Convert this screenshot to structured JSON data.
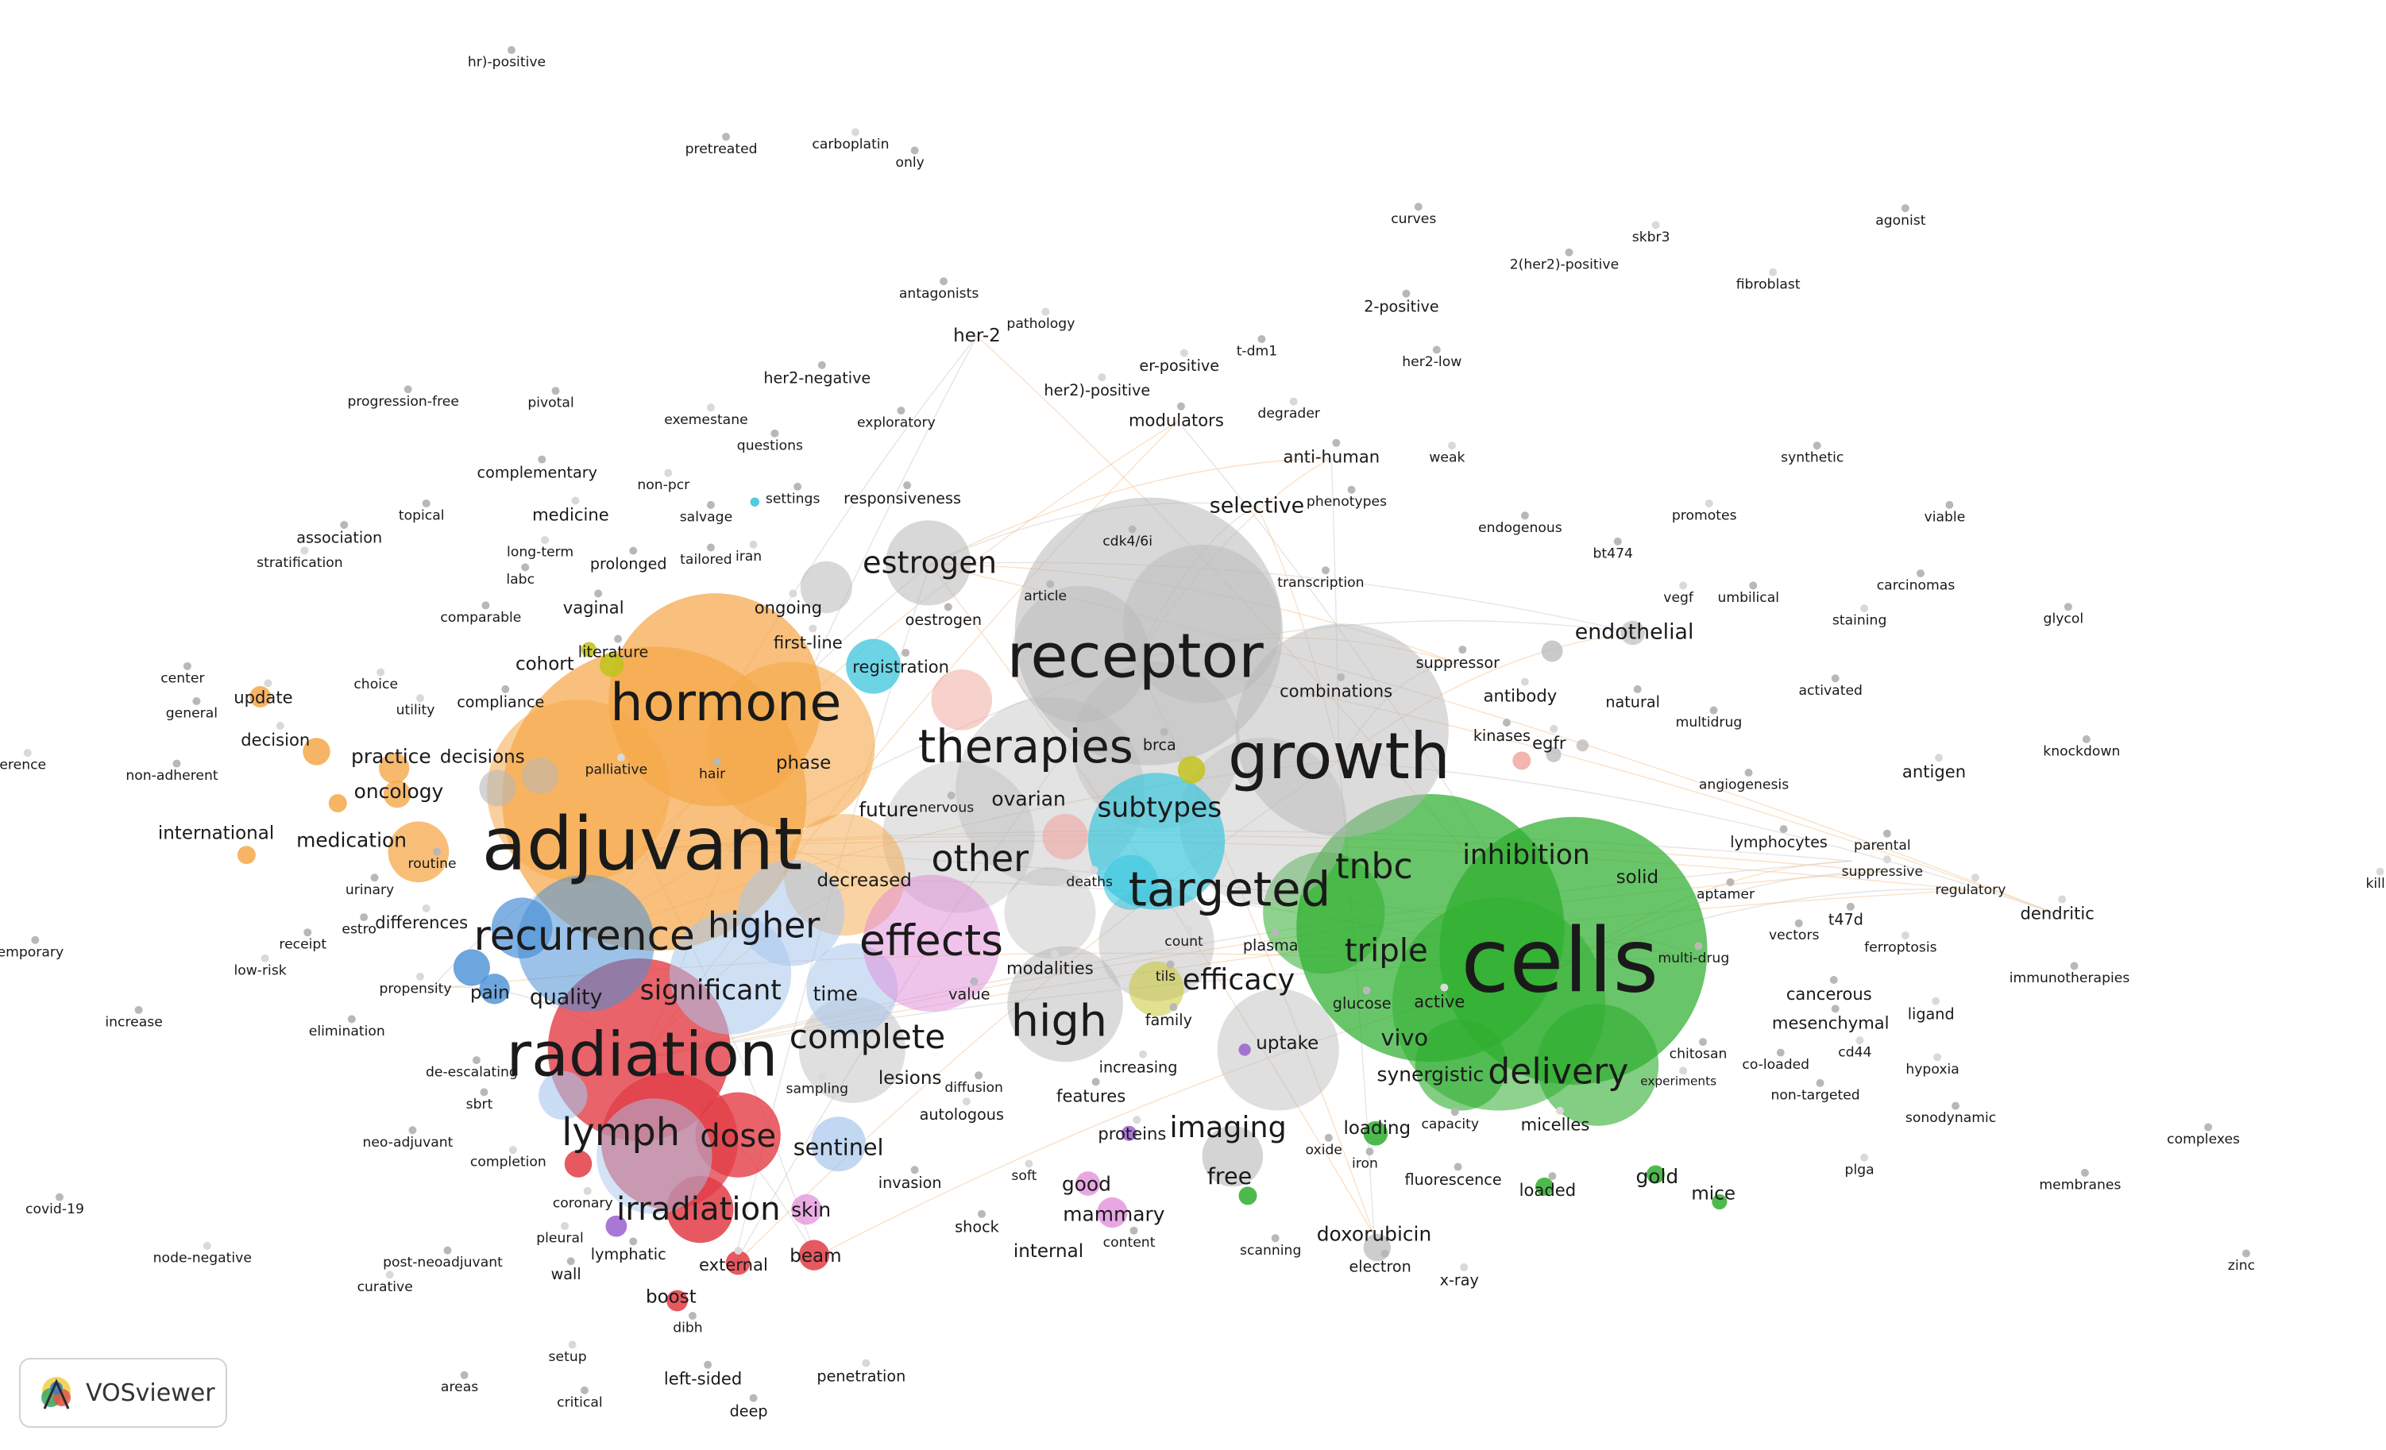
{
  "app": {
    "name": "VOSviewer"
  },
  "colors": {
    "gray": "#b8b8b8",
    "green": "#2fae2f",
    "orange": "#f5a849",
    "red": "#e23c45",
    "blue": "#4a90d6",
    "lightblue": "#a7c6ec",
    "cyan": "#3cc6dd",
    "pink": "#e08ad8",
    "purple": "#9a5fcf",
    "olive": "#c3c31f",
    "salmon": "#f0a39a",
    "brown": "#d98b5a"
  },
  "clusters": [
    {
      "name": "gray",
      "color": "gray"
    },
    {
      "name": "green",
      "color": "green"
    },
    {
      "name": "orange",
      "color": "orange"
    },
    {
      "name": "red",
      "color": "red"
    },
    {
      "name": "blue",
      "color": "blue"
    },
    {
      "name": "lightblue",
      "color": "lightblue"
    },
    {
      "name": "cyan",
      "color": "cyan"
    },
    {
      "name": "pink",
      "color": "pink"
    },
    {
      "name": "purple",
      "color": "purple"
    },
    {
      "name": "olive",
      "color": "olive"
    }
  ],
  "terms": [
    {
      "label": "cells",
      "cluster": "green",
      "weight": 10
    },
    {
      "label": "adjuvant",
      "cluster": "orange",
      "weight": 9.2
    },
    {
      "label": "growth",
      "cluster": "gray",
      "weight": 8.4
    },
    {
      "label": "receptor",
      "cluster": "gray",
      "weight": 8.0
    },
    {
      "label": "radiation",
      "cluster": "red",
      "weight": 7.8
    },
    {
      "label": "hormone",
      "cluster": "orange",
      "weight": 7.4
    },
    {
      "label": "therapies",
      "cluster": "gray",
      "weight": 6.8
    },
    {
      "label": "targeted",
      "cluster": "gray",
      "weight": 6.6
    },
    {
      "label": "recurrence",
      "cluster": "blue",
      "weight": 6.0
    },
    {
      "label": "effects",
      "cluster": "pink",
      "weight": 5.8
    },
    {
      "label": "high",
      "cluster": "gray",
      "weight": 5.8
    },
    {
      "label": "estrogen",
      "cluster": "gray",
      "weight": 5.0
    },
    {
      "label": "higher",
      "cluster": "lightblue",
      "weight": 5.0
    },
    {
      "label": "other",
      "cluster": "gray",
      "weight": 5.0
    },
    {
      "label": "lymph",
      "cluster": "red",
      "weight": 5.0
    },
    {
      "label": "tnbc",
      "cluster": "green",
      "weight": 4.6
    },
    {
      "label": "triple",
      "cluster": "green",
      "weight": 4.6
    },
    {
      "label": "complete",
      "cluster": "gray",
      "weight": 4.6
    },
    {
      "label": "delivery",
      "cluster": "green",
      "weight": 4.6
    },
    {
      "label": "irradiation",
      "cluster": "red",
      "weight": 4.6
    },
    {
      "label": "dose",
      "cluster": "red",
      "weight": 4.4
    },
    {
      "label": "subtypes",
      "cluster": "cyan",
      "weight": 4.4
    },
    {
      "label": "inhibition",
      "cluster": "green",
      "weight": 4.2
    },
    {
      "label": "efficacy",
      "cluster": "gray",
      "weight": 4.2
    },
    {
      "label": "significant",
      "cluster": "lightblue",
      "weight": 4.0
    },
    {
      "label": "imaging",
      "cluster": "gray",
      "weight": 4.0
    },
    {
      "label": "selective",
      "cluster": "gray",
      "weight": 3.6
    },
    {
      "label": "sentinel",
      "cluster": "lightblue",
      "weight": 3.6
    },
    {
      "label": "vivo",
      "cluster": "green",
      "weight": 3.6
    },
    {
      "label": "practice",
      "cluster": "orange",
      "weight": 3.4
    },
    {
      "label": "endothelial",
      "cluster": "gray",
      "weight": 3.4
    },
    {
      "label": "free",
      "cluster": "gray",
      "weight": 3.4
    },
    {
      "label": "quality",
      "cluster": "blue",
      "weight": 3.4
    },
    {
      "label": "ovarian",
      "cluster": "gray",
      "weight": 3.2
    },
    {
      "label": "future",
      "cluster": "gray",
      "weight": 3.2
    },
    {
      "label": "oncology",
      "cluster": "orange",
      "weight": 3.2
    },
    {
      "label": "medication",
      "cluster": "orange",
      "weight": 3.2
    },
    {
      "label": "mammary",
      "cluster": "pink",
      "weight": 3.0
    },
    {
      "label": "international",
      "cluster": "orange",
      "weight": 3.0
    },
    {
      "label": "decreased",
      "cluster": "orange",
      "weight": 3.0
    },
    {
      "label": "time",
      "cluster": "lightblue",
      "weight": 3.0
    },
    {
      "label": "pain",
      "cluster": "blue",
      "weight": 3.0
    },
    {
      "label": "differences",
      "cluster": "blue",
      "weight": 2.8
    },
    {
      "label": "skin",
      "cluster": "red",
      "weight": 2.8
    },
    {
      "label": "good",
      "cluster": "pink",
      "weight": 2.8
    },
    {
      "label": "loading",
      "cluster": "green",
      "weight": 2.8
    },
    {
      "label": "synergistic",
      "cluster": "green",
      "weight": 2.8
    },
    {
      "label": "doxorubicin",
      "cluster": "gray",
      "weight": 2.8
    },
    {
      "label": "antibody",
      "cluster": "gray",
      "weight": 2.6
    },
    {
      "label": "combinations",
      "cluster": "gray",
      "weight": 2.6
    },
    {
      "label": "update",
      "cluster": "orange",
      "weight": 2.6
    },
    {
      "label": "decision",
      "cluster": "orange",
      "weight": 2.6
    },
    {
      "label": "decisions",
      "cluster": "orange",
      "weight": 2.6
    },
    {
      "label": "phase",
      "cluster": "orange",
      "weight": 2.6
    },
    {
      "label": "external",
      "cluster": "red",
      "weight": 2.6
    },
    {
      "label": "beam",
      "cluster": "red",
      "weight": 2.6
    },
    {
      "label": "lesions",
      "cluster": "gray",
      "weight": 2.6
    },
    {
      "label": "features",
      "cluster": "gray",
      "weight": 2.6
    },
    {
      "label": "proteins",
      "cluster": "purple",
      "weight": 2.6
    },
    {
      "label": "uptake",
      "cluster": "green",
      "weight": 2.6
    },
    {
      "label": "micelles",
      "cluster": "green",
      "weight": 2.6
    },
    {
      "label": "solid",
      "cluster": "green",
      "weight": 2.6
    },
    {
      "label": "gold",
      "cluster": "green",
      "weight": 2.6
    },
    {
      "label": "mice",
      "cluster": "green",
      "weight": 2.6
    },
    {
      "label": "cohort",
      "cluster": "olive",
      "weight": 2.4
    },
    {
      "label": "ongoing",
      "cluster": "olive",
      "weight": 2.4
    },
    {
      "label": "first-line",
      "cluster": "gray",
      "weight": 2.4
    },
    {
      "label": "registration",
      "cluster": "cyan",
      "weight": 2.4
    },
    {
      "label": "modulators",
      "cluster": "gray",
      "weight": 2.4
    },
    {
      "label": "anti-human",
      "cluster": "gray",
      "weight": 2.4
    },
    {
      "label": "vaginal",
      "cluster": "olive",
      "weight": 2.4
    },
    {
      "label": "medicine",
      "cluster": "purple",
      "weight": 2.4
    },
    {
      "label": "her-2",
      "cluster": "gray",
      "weight": 2.4
    },
    {
      "label": "loaded",
      "cluster": "green",
      "weight": 2.4
    },
    {
      "label": "internal",
      "cluster": "pink",
      "weight": 2.4
    },
    {
      "label": "boost",
      "cluster": "red",
      "weight": 2.4
    },
    {
      "label": "active",
      "cluster": "green",
      "weight": 2.2
    },
    {
      "label": "glucose",
      "cluster": "green",
      "weight": 2.2
    },
    {
      "label": "plasma",
      "cluster": "gray",
      "weight": 2.2
    },
    {
      "label": "modalities",
      "cluster": "gray",
      "weight": 2.2
    },
    {
      "label": "value",
      "cluster": "pink",
      "weight": 2.2
    },
    {
      "label": "kinases",
      "cluster": "salmon",
      "weight": 2.2
    },
    {
      "label": "egfr",
      "cluster": "salmon",
      "weight": 2.2
    },
    {
      "label": "natural",
      "cluster": "gray",
      "weight": 2.2
    },
    {
      "label": "antigen",
      "cluster": "gray",
      "weight": 2.2
    },
    {
      "label": "lymphocytes",
      "cluster": "gray",
      "weight": 2.2
    },
    {
      "label": "cancerous",
      "cluster": "gray",
      "weight": 2.2
    },
    {
      "label": "mesenchymal",
      "cluster": "gray",
      "weight": 2.2
    },
    {
      "label": "dendritic",
      "cluster": "gray",
      "weight": 2.2
    },
    {
      "label": "fluorescence",
      "cluster": "gray",
      "weight": 2.2
    },
    {
      "label": "increasing",
      "cluster": "gray",
      "weight": 2.2
    },
    {
      "label": "routine",
      "cluster": "orange",
      "weight": 2.0
    }
  ],
  "labels": [
    "hr)-positive",
    "pretreated",
    "carboplatin",
    "only",
    "curves",
    "skbr3",
    "agonist",
    "2(her2)-positive",
    "fibroblast",
    "antagonists",
    "her-2",
    "pathology",
    "2-positive",
    "t-dm1",
    "er-positive",
    "her2-low",
    "her2-negative",
    "her2)-positive",
    "progression-free",
    "pivotal",
    "exemestane",
    "exploratory",
    "modulators",
    "degrader",
    "questions",
    "anti-human",
    "weak",
    "synthetic",
    "complementary",
    "non-pcr",
    "settings",
    "responsiveness",
    "selective",
    "phenotypes",
    "topical",
    "medicine",
    "salvage",
    "endogenous",
    "promotes",
    "viable",
    "association",
    "long-term",
    "prolonged",
    "tailored",
    "iran",
    "cdk4/6i",
    "bt474",
    "stratification",
    "labc",
    "transcription",
    "vegf",
    "umbilical",
    "carcinomas",
    "estrogen",
    "comparable",
    "vaginal",
    "ongoing",
    "article",
    "oestrogen",
    "staining",
    "glycol",
    "literature",
    "first-line",
    "endothelial",
    "suppressor",
    "receptor",
    "registration",
    "center",
    "choice",
    "cohort",
    "combinations",
    "antibody",
    "natural",
    "activated",
    "update",
    "general",
    "compliance",
    "utility",
    "hormone",
    "multidrug",
    "egfr",
    "kinases",
    "knockdown",
    "decision",
    "growth",
    "brca",
    "therapies",
    "practice",
    "decisions",
    "palliative",
    "hair",
    "phase",
    "erence",
    "non-adherent",
    "angiogenesis",
    "antigen",
    "oncology",
    "nervous",
    "ovarian",
    "subtypes",
    "future",
    "inhibition",
    "international",
    "medication",
    "adjuvant",
    "parental",
    "lymphocytes",
    "suppressive",
    "routine",
    "aptamer",
    "regulatory",
    "other",
    "targeted",
    "tnbc",
    "solid",
    "decreased",
    "deaths",
    "urinary",
    "estro",
    "differences",
    "higher",
    "recurrence",
    "dendritic",
    "vectors",
    "t47d",
    "ferroptosis",
    "receipt",
    "effects",
    "count",
    "plasma",
    "multi-drug",
    "cells",
    "triple",
    "emporary",
    "low-risk",
    "tils",
    "immunotherapies",
    "modalities",
    "efficacy",
    "cancerous",
    "propensity",
    "pain",
    "quality",
    "significant",
    "time",
    "glucose",
    "active",
    "value",
    "family",
    "ligand",
    "mesenchymal",
    "increase",
    "high",
    "elimination",
    "complete",
    "uptake",
    "vivo",
    "chitosan",
    "cd44",
    "co-loaded",
    "radiation",
    "hypoxia",
    "de-escalating",
    "sbrt",
    "sampling",
    "lesions",
    "diffusion",
    "increasing",
    "synergistic",
    "delivery",
    "experiments",
    "features",
    "non-targeted",
    "autologous",
    "capacity",
    "sonodynamic",
    "lymph",
    "dose",
    "neo-adjuvant",
    "proteins",
    "imaging",
    "loading",
    "micelles",
    "sentinel",
    "complexes",
    "completion",
    "oxide",
    "iron",
    "plga",
    "free",
    "good",
    "soft",
    "invasion",
    "fluorescence",
    "gold",
    "loaded",
    "covid-19",
    "coronary",
    "mice",
    "membranes",
    "irradiation",
    "skin",
    "mammary",
    "pleural",
    "shock",
    "doxorubicin",
    "node-negative",
    "lymphatic",
    "content",
    "internal",
    "scanning",
    "post-neoadjuvant",
    "external",
    "beam",
    "zinc",
    "curative",
    "wall",
    "electron",
    "x-ray",
    "boost",
    "dibh",
    "setup",
    "areas",
    "left-sided",
    "penetration",
    "critical",
    "deep",
    "kill"
  ]
}
